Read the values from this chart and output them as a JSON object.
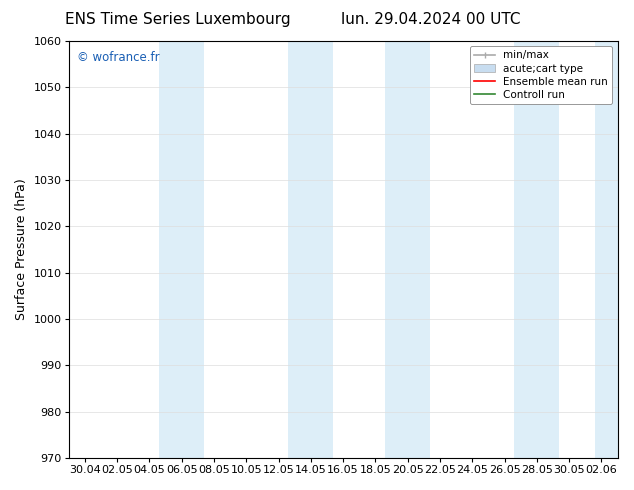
{
  "title_left": "ENS Time Series Luxembourg",
  "title_right": "lun. 29.04.2024 00 UTC",
  "ylabel": "Surface Pressure (hPa)",
  "ylim": [
    970,
    1060
  ],
  "yticks": [
    970,
    980,
    990,
    1000,
    1010,
    1020,
    1030,
    1040,
    1050,
    1060
  ],
  "xtick_labels": [
    "30.04",
    "02.05",
    "04.05",
    "06.05",
    "08.05",
    "10.05",
    "12.05",
    "14.05",
    "16.05",
    "18.05",
    "20.05",
    "22.05",
    "24.05",
    "26.05",
    "28.05",
    "30.05",
    "02.06"
  ],
  "watermark": "© wofrance.fr",
  "watermark_color": "#1a5fb4",
  "bg_color": "#ffffff",
  "plot_bg_color": "#ffffff",
  "band_color": "#ddeef8",
  "legend_entries": [
    {
      "label": "min/max"
    },
    {
      "label": "acute;cart type"
    },
    {
      "label": "Ensemble mean run"
    },
    {
      "label": "Controll run"
    }
  ],
  "legend_line_colors": [
    "#aaaaaa",
    "#c8ddf0",
    "#ff0000",
    "#338833"
  ],
  "grid_color": "#dddddd",
  "spine_color": "#000000",
  "title_fontsize": 11,
  "tick_fontsize": 8,
  "ylabel_fontsize": 9
}
